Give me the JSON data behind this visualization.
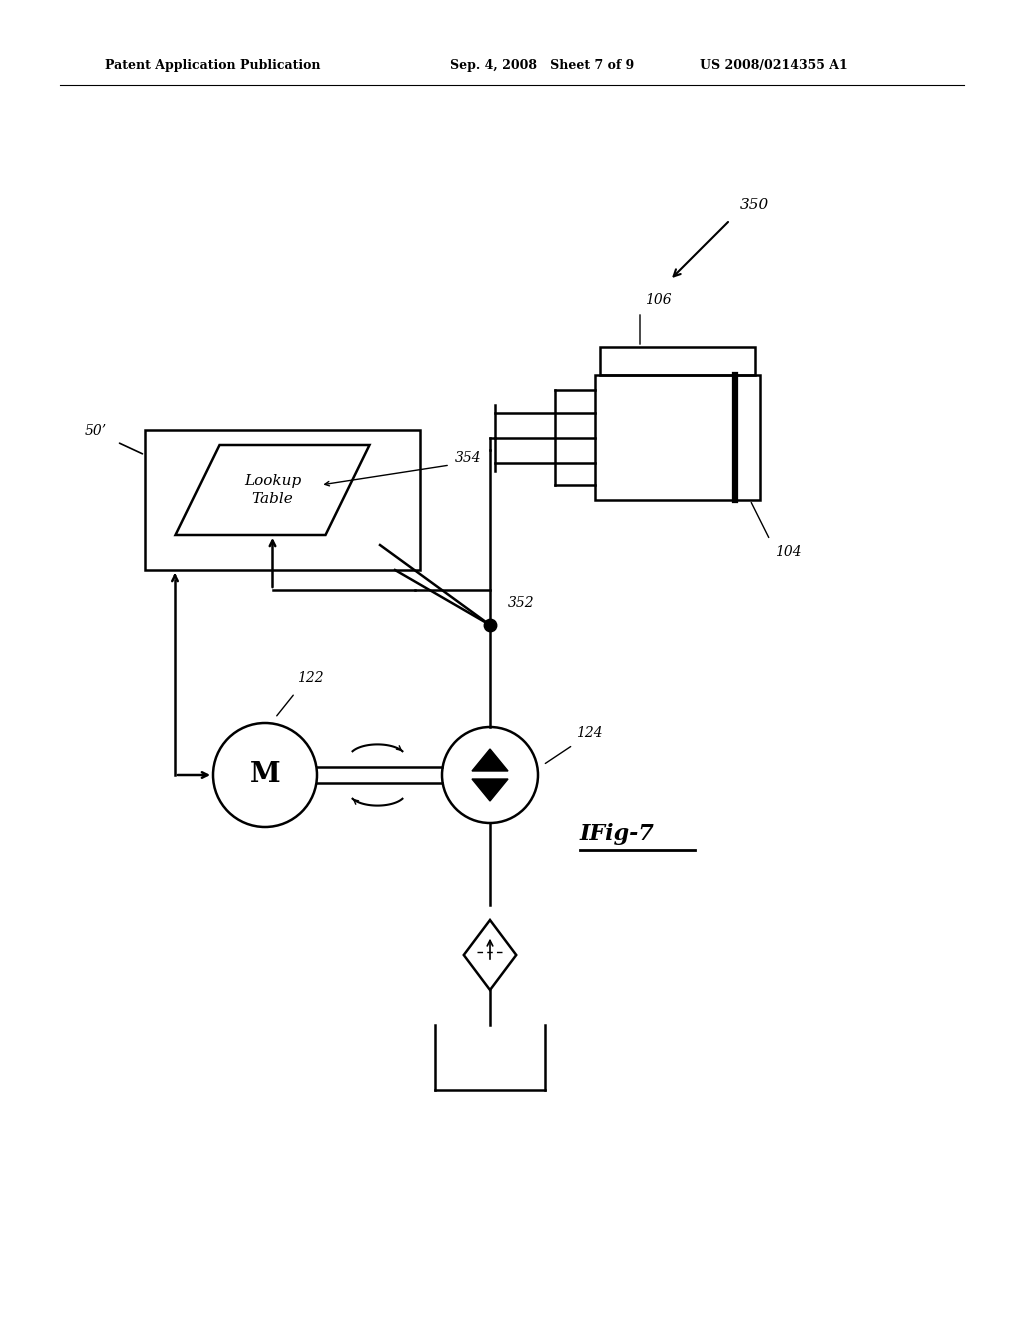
{
  "bg_color": "#ffffff",
  "line_color": "#000000",
  "header_left": "Patent Application Publication",
  "header_mid": "Sep. 4, 2008   Sheet 7 of 9",
  "header_right": "US 2008/0214355 A1",
  "fig_label": "IFig-7",
  "labels": {
    "50prime": "50’",
    "354": "354",
    "350": "350",
    "106": "106",
    "104": "104",
    "352": "352",
    "122": "122",
    "124": "124",
    "M": "M",
    "lookup_table": "Lookup\nTable"
  }
}
